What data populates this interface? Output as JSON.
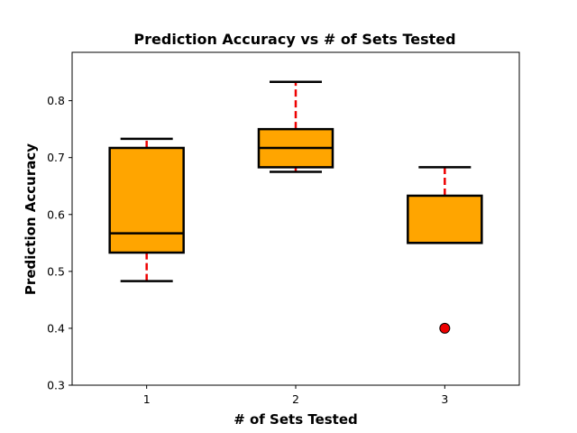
{
  "chart_data": {
    "type": "box",
    "title": "Prediction Accuracy vs # of Sets Tested",
    "xlabel": "# of Sets Tested",
    "ylabel": "Prediction Accuracy",
    "categories": [
      "1",
      "2",
      "3"
    ],
    "ylim": [
      0.3,
      0.885
    ],
    "yticks": [
      "0.3",
      "0.4",
      "0.5",
      "0.6",
      "0.7",
      "0.8"
    ],
    "boxes": [
      {
        "category": "1",
        "whisker_low": 0.483,
        "q1": 0.533,
        "median": 0.567,
        "q3": 0.717,
        "whisker_high": 0.733,
        "outliers": []
      },
      {
        "category": "2",
        "whisker_low": 0.675,
        "q1": 0.683,
        "median": 0.717,
        "q3": 0.75,
        "whisker_high": 0.833,
        "outliers": []
      },
      {
        "category": "3",
        "whisker_low": 0.55,
        "q1": 0.55,
        "median": 0.55,
        "q3": 0.633,
        "whisker_high": 0.683,
        "outliers": [
          0.4
        ]
      }
    ],
    "colors": {
      "box_fill": "#FFA500",
      "box_edge": "#000000",
      "whisker": "#EE0000",
      "outlier": "#EE0000"
    },
    "grid": false
  }
}
